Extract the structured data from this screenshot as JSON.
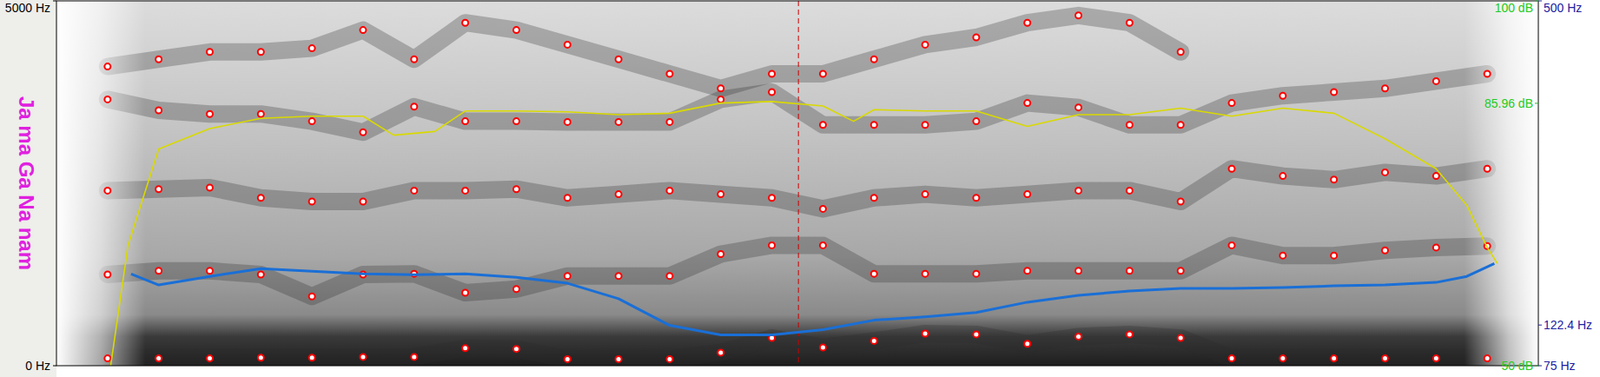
{
  "chart_data": {
    "type": "spectrogram",
    "title": "Ja ma Ga Na nam",
    "xlim": [
      0,
      1.45
    ],
    "tick_labels": "y",
    "grid": false,
    "ylim": [
      0,
      5000
    ],
    "yticks": [
      {
        "value": 0,
        "label": "0 Hz"
      },
      {
        "value": 5000,
        "label": "5000 Hz"
      }
    ],
    "y2lim": [
      75,
      500
    ],
    "y2ticks": [
      {
        "value": 75,
        "label": "75 Hz"
      },
      {
        "value": 122.4,
        "label": "122.4 Hz"
      },
      {
        "value": 500,
        "label": "500 Hz"
      }
    ],
    "y3lim": [
      50,
      100
    ],
    "y3ticks": [
      {
        "value": 50,
        "label": "50 dB"
      },
      {
        "value": 85.96,
        "label": "85.96 dB"
      },
      {
        "value": 100,
        "label": "100 dB"
      }
    ],
    "x": [
      0.05,
      0.1,
      0.15,
      0.2,
      0.25,
      0.3,
      0.35,
      0.4,
      0.45,
      0.5,
      0.55,
      0.6,
      0.65,
      0.7,
      0.75,
      0.8,
      0.85,
      0.9,
      0.95,
      1.0,
      1.05,
      1.1,
      1.15,
      1.2,
      1.25,
      1.3,
      1.35,
      1.4
    ],
    "series": [
      {
        "type": "scatter",
        "color": "#ff0000",
        "marker": "circle",
        "values": [
          100,
          100,
          100,
          110,
          110,
          120,
          120,
          240,
          230,
          90,
          90,
          90,
          180,
          380,
          250,
          340,
          440,
          430,
          300,
          400,
          430,
          380,
          100,
          100,
          100,
          100,
          100,
          100
        ]
      },
      {
        "type": "scatter",
        "color": "#ff0000",
        "marker": "circle",
        "values": [
          1250,
          1300,
          1300,
          1250,
          950,
          1250,
          1260,
          1000,
          1050,
          1230,
          1230,
          1230,
          1530,
          1650,
          1650,
          1260,
          1260,
          1260,
          1300,
          1300,
          1300,
          1300,
          1650,
          1510,
          1510,
          1580,
          1620,
          1640
        ]
      },
      {
        "type": "scatter",
        "color": "#ff0000",
        "marker": "circle",
        "values": [
          2400,
          2420,
          2440,
          2300,
          2250,
          2250,
          2400,
          2400,
          2420,
          2300,
          2350,
          2400,
          2350,
          2300,
          2150,
          2300,
          2350,
          2300,
          2350,
          2400,
          2400,
          2250,
          2700,
          2600,
          2550,
          2650,
          2600,
          2700
        ]
      },
      {
        "type": "scatter",
        "color": "#ff0000",
        "marker": "circle",
        "values": [
          3650,
          3500,
          3450,
          3450,
          3350,
          3200,
          3550,
          3350,
          3350,
          3340,
          3340,
          3340,
          3650,
          3750,
          3300,
          3300,
          3300,
          3350,
          3600,
          3540,
          3300,
          3300,
          3600,
          3700,
          3750,
          3800,
          3900,
          4000
        ]
      },
      {
        "type": "scatter",
        "color": "#ff0000",
        "marker": "circle",
        "values": [
          4100,
          4200,
          4300,
          4300,
          4350,
          4600,
          4200,
          4700,
          4600,
          4400,
          4200,
          4000,
          3800,
          4000,
          4000,
          4200,
          4400,
          4500,
          4700,
          4800,
          4700,
          4300,
          null,
          null,
          null,
          null,
          null,
          null
        ]
      },
      {
        "type": "line",
        "axis": "y2",
        "color": "#1a6fd6",
        "line_style": "solid",
        "x": [
          0.073,
          0.1,
          0.15,
          0.2,
          0.25,
          0.3,
          0.35,
          0.4,
          0.45,
          0.5,
          0.55,
          0.6,
          0.65,
          0.7,
          0.75,
          0.8,
          0.85,
          0.9,
          0.95,
          1.0,
          1.05,
          1.1,
          1.15,
          1.2,
          1.25,
          1.3,
          1.35,
          1.38,
          1.407
        ],
        "values": [
          182,
          169,
          179,
          188,
          185,
          182,
          181,
          182,
          178,
          171,
          153,
          122,
          111,
          111,
          117,
          128,
          132,
          137,
          149,
          157,
          162,
          165,
          165,
          166,
          168,
          169,
          172,
          179,
          194
        ]
      },
      {
        "type": "line",
        "axis": "y3",
        "color": "#d9d900",
        "line_style": "solid",
        "x": [
          0.053,
          0.07,
          0.1,
          0.15,
          0.2,
          0.25,
          0.3,
          0.33,
          0.37,
          0.4,
          0.45,
          0.5,
          0.55,
          0.6,
          0.65,
          0.7,
          0.75,
          0.78,
          0.8,
          0.85,
          0.9,
          0.95,
          1.0,
          1.05,
          1.1,
          1.15,
          1.2,
          1.25,
          1.3,
          1.35,
          1.38,
          1.4,
          1.41
        ],
        "values": [
          50,
          66.5,
          79.7,
          82.5,
          83.9,
          84.2,
          84.2,
          81.6,
          82.1,
          84.9,
          84.9,
          84.8,
          84.4,
          84.6,
          86,
          86.2,
          85.6,
          83.5,
          85.1,
          84.9,
          84.9,
          82.8,
          84.4,
          84.4,
          85.3,
          84.2,
          85.3,
          84.6,
          81.1,
          77,
          72,
          66.2,
          64
        ]
      }
    ],
    "annotations": [
      {
        "type": "vline",
        "x": 0.726,
        "color": "#cc0000",
        "line_style": "dashed"
      }
    ]
  }
}
